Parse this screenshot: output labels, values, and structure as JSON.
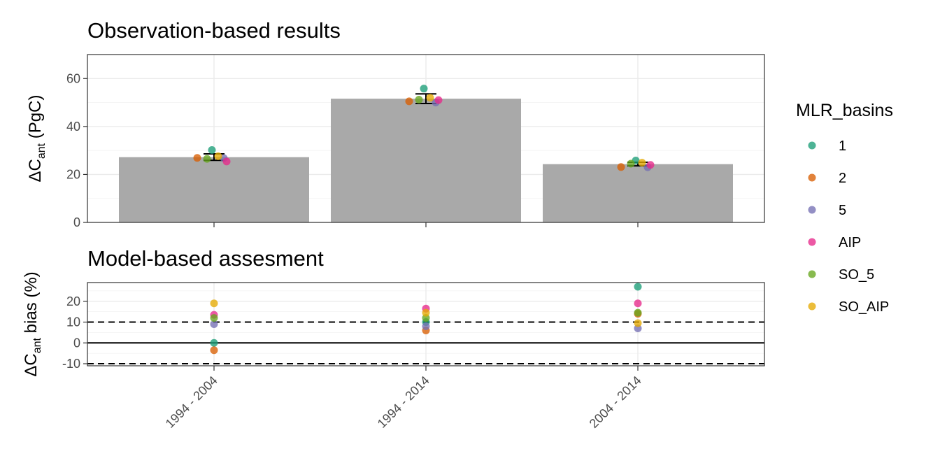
{
  "legend": {
    "title": "MLR_basins",
    "items": [
      {
        "label": "1",
        "color": "#1B9E77"
      },
      {
        "label": "2",
        "color": "#D95F02"
      },
      {
        "label": "5",
        "color": "#7570B3"
      },
      {
        "label": "AIP",
        "color": "#E7298A"
      },
      {
        "label": "SO_5",
        "color": "#66A61E"
      },
      {
        "label": "SO_AIP",
        "color": "#E6AB02"
      }
    ]
  },
  "chart_data": [
    {
      "type": "bar",
      "title": "Observation-based results",
      "ylabel_main": "ΔC",
      "ylabel_sub": "ant",
      "ylabel_tail": " (PgC)",
      "categories": [
        "1994 - 2004",
        "1994 - 2014",
        "2004 - 2014"
      ],
      "ylim": [
        0,
        70
      ],
      "yticks": [
        0,
        20,
        40,
        60
      ],
      "bar_color": "#A9A9A9",
      "values": [
        27.2,
        51.6,
        24.3
      ],
      "error": [
        [
          25.9,
          28.6
        ],
        [
          49.6,
          53.6
        ],
        [
          23.6,
          25.1
        ]
      ],
      "points": [
        {
          "basin": "1",
          "values": [
            30.2,
            55.8,
            25.8
          ]
        },
        {
          "basin": "2",
          "values": [
            26.9,
            50.5,
            23.1
          ]
        },
        {
          "basin": "5",
          "values": [
            26.8,
            50.0,
            23.0
          ]
        },
        {
          "basin": "AIP",
          "values": [
            25.4,
            51.0,
            24.0
          ]
        },
        {
          "basin": "SO_5",
          "values": [
            26.5,
            51.2,
            24.5
          ]
        },
        {
          "basin": "SO_AIP",
          "values": [
            27.6,
            52.0,
            24.9
          ]
        }
      ],
      "grid": true
    },
    {
      "type": "scatter",
      "title": "Model-based assesment",
      "ylabel_main": "ΔC",
      "ylabel_sub": "ant",
      "ylabel_tail": " bias (%)",
      "categories": [
        "1994 - 2004",
        "1994 - 2014",
        "2004 - 2014"
      ],
      "ylim": [
        -11,
        29
      ],
      "yticks": [
        -10,
        0,
        10,
        20
      ],
      "reference_lines": {
        "solid": 0,
        "dashed": [
          -10,
          10
        ]
      },
      "points": [
        {
          "basin": "1",
          "values": [
            0.0,
            10.0,
            27.0
          ]
        },
        {
          "basin": "2",
          "values": [
            -3.5,
            6.0,
            14.0
          ]
        },
        {
          "basin": "5",
          "values": [
            9.0,
            8.0,
            7.0
          ]
        },
        {
          "basin": "AIP",
          "values": [
            13.5,
            16.5,
            19.0
          ]
        },
        {
          "basin": "SO_5",
          "values": [
            12.0,
            12.0,
            14.5
          ]
        },
        {
          "basin": "SO_AIP",
          "values": [
            19.0,
            14.5,
            9.5
          ]
        }
      ],
      "grid": true
    }
  ]
}
